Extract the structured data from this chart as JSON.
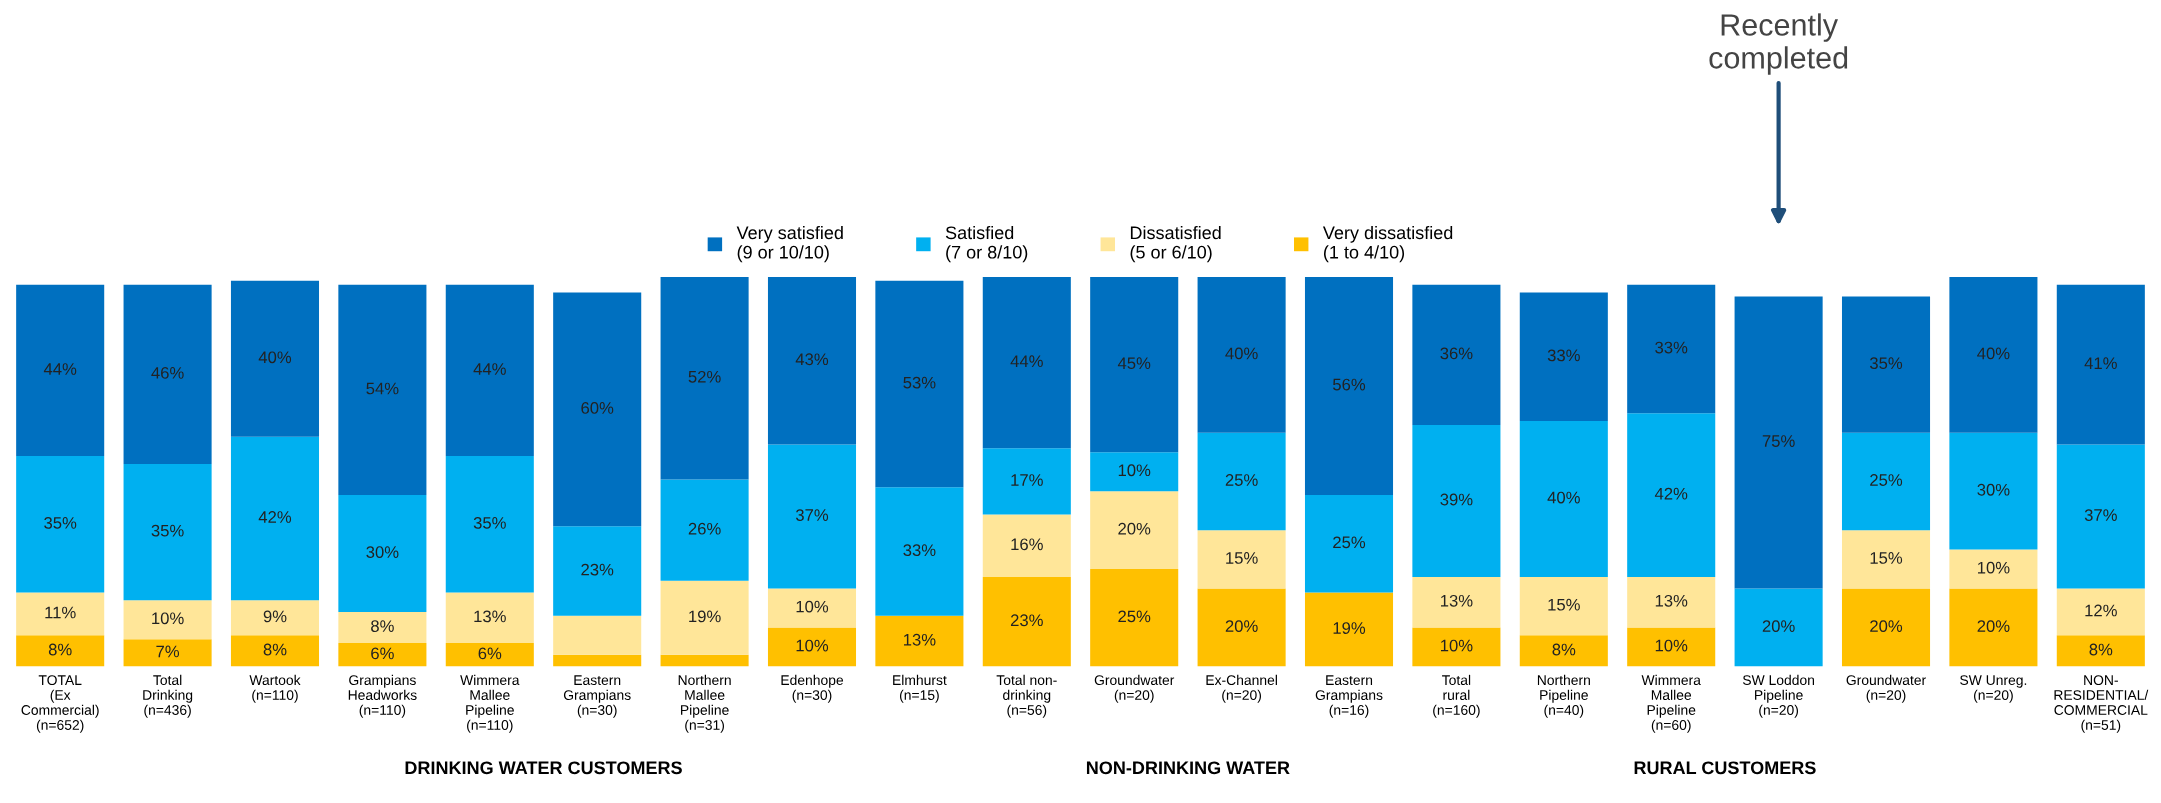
{
  "chart_data": {
    "type": "bar",
    "stacked": true,
    "legend": "top",
    "grid": false,
    "tick_labels": "x",
    "categories": [
      "TOTAL\n(Ex\nCommercial)\n(n=652)",
      "Total\nDrinking\n(n=436)",
      "Wartook\n(n=110)",
      "Grampians\nHeadworks\n(n=110)",
      "Wimmera\nMallee\nPipeline\n(n=110)",
      "Eastern\nGrampians\n(n=30)",
      "Northern\nMallee\nPipeline\n(n=31)",
      "Edenhope\n(n=30)",
      "Elmhurst\n(n=15)",
      "Total non-\ndrinking\n(n=56)",
      "Groundwater\n(n=20)",
      "Ex-Channel\n(n=20)",
      "Eastern\nGrampians\n(n=16)",
      "Total\nrural\n(n=160)",
      "Northern\nPipeline\n(n=40)",
      "Wimmera\nMallee\nPipeline\n(n=60)",
      "SW Loddon\nPipeline\n(n=20)",
      "Groundwater\n(n=20)",
      "SW Unreg.\n(n=20)",
      "NON-\nRESIDENTIAL/\nCOMMERCIAL\n(n=51)"
    ],
    "series": [
      {
        "name": "Very dissatisfied\n(1 to 4/10)",
        "color": "#ffc000",
        "values": [
          8,
          7,
          8,
          6,
          6,
          3,
          3,
          10,
          13,
          23,
          25,
          20,
          19,
          10,
          8,
          10,
          0,
          20,
          20,
          8
        ],
        "value_labels": [
          "8%",
          "7%",
          "8%",
          "6%",
          "6%",
          null,
          null,
          "10%",
          "13%",
          "23%",
          "25%",
          "20%",
          "19%",
          "10%",
          "8%",
          "10%",
          null,
          "20%",
          "20%",
          "8%"
        ]
      },
      {
        "name": "Dissatisfied\n(5 or 6/10)",
        "color": "#ffe699",
        "values": [
          11,
          10,
          9,
          8,
          13,
          10,
          19,
          10,
          0,
          16,
          20,
          15,
          0,
          13,
          15,
          13,
          0,
          15,
          10,
          12
        ],
        "value_labels": [
          "11%",
          "10%",
          "9%",
          "8%",
          "13%",
          null,
          "19%",
          "10%",
          null,
          "16%",
          "20%",
          "15%",
          null,
          "13%",
          "15%",
          "13%",
          null,
          "15%",
          "10%",
          "12%"
        ]
      },
      {
        "name": "Satisfied\n(7 or 8/10)",
        "color": "#00b0f0",
        "values": [
          35,
          35,
          42,
          30,
          35,
          23,
          26,
          37,
          33,
          17,
          10,
          25,
          25,
          39,
          40,
          42,
          20,
          25,
          30,
          37
        ],
        "value_labels": [
          "35%",
          "35%",
          "42%",
          "30%",
          "35%",
          "23%",
          "26%",
          "37%",
          "33%",
          "17%",
          "10%",
          "25%",
          "25%",
          "39%",
          "40%",
          "42%",
          "20%",
          "25%",
          "30%",
          "37%"
        ]
      },
      {
        "name": "Very satisfied\n(9 or 10/10)",
        "color": "#0070c0",
        "values": [
          44,
          46,
          40,
          54,
          44,
          60,
          52,
          43,
          53,
          44,
          45,
          40,
          56,
          36,
          33,
          33,
          75,
          35,
          40,
          41
        ],
        "value_labels": [
          "44%",
          "46%",
          "40%",
          "54%",
          "44%",
          "60%",
          "52%",
          "43%",
          "53%",
          "44%",
          "45%",
          "40%",
          "56%",
          "36%",
          "33%",
          "33%",
          "75%",
          "35%",
          "40%",
          "41%"
        ]
      }
    ],
    "annotations": [
      "DRINKING WATER CUSTOMERS",
      "NON-DRINKING WATER",
      "RURAL CUSTOMERS",
      "Recently\ncompleted"
    ]
  }
}
